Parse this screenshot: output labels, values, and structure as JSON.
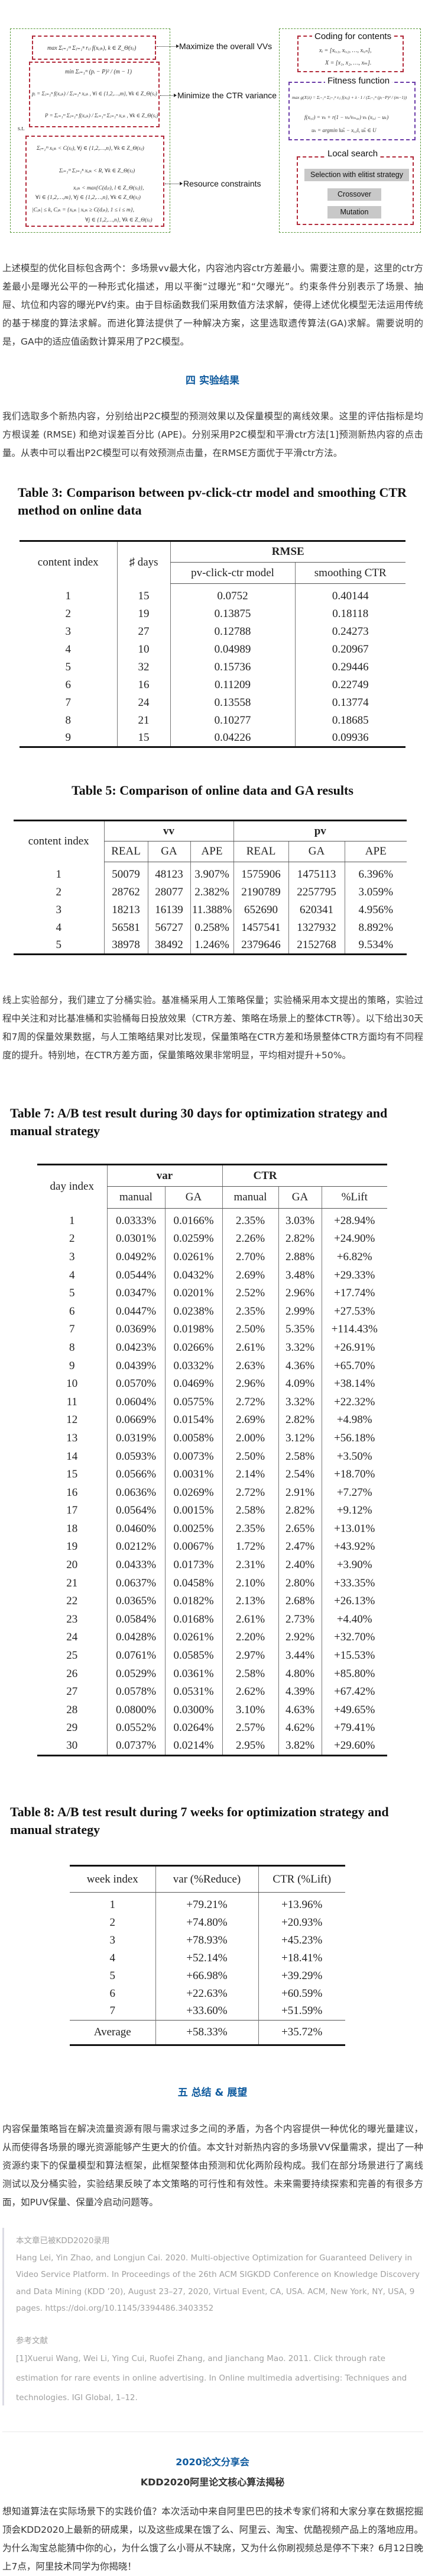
{
  "diagram": {
    "left_formulas": {
      "max_vv": "max Σᵢ₌₁ᵐ Σⱼ₌₁ⁿ rᵢⱼ f(xᵢⱼₖ), k ∈ Z_Θ(sⱼ)",
      "min_var": "min Σᵢ₌₁ᵐ (pᵢ − P)² / (m − 1)",
      "p_i": "pᵢ = Σⱼ₌₁ⁿ f(xᵢⱼₖ) / Σⱼ₌₁ⁿ xᵢⱼₖ , ∀i ∈ {1,2,…,m}, ∀k ∈ Z_Θ(sⱼ)",
      "P": "P = Σᵢ₌₁ᵐ Σⱼ₌₁ⁿ f(xᵢⱼₖ) / Σᵢ₌₁ᵐ Σⱼ₌₁ⁿ xᵢⱼₖ , ∀k ∈ Z_Θ(sⱼ)",
      "st": "s.t.",
      "c1": "Σᵢ₌₁ᵐ xᵢⱼₖ < C(sⱼ), ∀j ∈ {1,2,…,n}, ∀k ∈ Z_Θ(sⱼ)",
      "c2": "Σᵢ₌₁ᵐ Σⱼ₌₁ⁿ xᵢⱼₖ < R, ∀k ∈ Z_Θ(sⱼ)",
      "c3a": "xᵢⱼₖ < max{C(dⱼₗ), l ∈ Z_Θ(sⱼ)},",
      "c3b": "∀i ∈ {1,2,…,m}, ∀j ∈ {1,2,…,n}, ∀k ∈ Z_Θ(sⱼ)",
      "c4a": "|Cⱼₖ| ≤ k, Cⱼₖ = {xᵢⱼₖ | xᵢⱼₖ ≥ C(dⱼₖ), 1 ≤ i ≤ m},",
      "c4b": "∀j ∈ {1,2,…,n}, ∀k ∈ Z_Θ(sⱼ)"
    },
    "objectives": [
      "Maximize the overall VVs",
      "Minimize the CTR variance",
      "Resource constraints"
    ],
    "right": {
      "coding_title": "Coding for contents",
      "coding_f1": "xᵢ = [xᵢ,₁, xᵢ,₂, …, xᵢ,ₙ],",
      "coding_f2": "X = [x₁, x₂, …, xₘ].",
      "fitness_title": "Fitness function",
      "fitness_f1": "max g(X|λ) = Σᵢ₌₁ᵐ Σⱼ₌₁ⁿ rᵢⱼ f(xᵢⱼ) + λ · 1 / (Σᵢ₌₁ᵐ (pᵢ−P)² / (m−1))",
      "fitness_f2": "f(xᵢ,ⱼ) = vₖ + r(1 − vₖ/vₘₐₓ) vₖ (xᵢ,ⱼ − uₖ)",
      "fitness_f3": "uₖ = argmin ‖uₖ̃ − xᵢ,ⱼ‖, uₖ̃ ∈ U",
      "local_title": "Local search",
      "buttons": [
        "Selection with elitist strategy",
        "Crossover",
        "Mutation"
      ]
    },
    "colors": {
      "outer": "#5a9a3a",
      "objective": "#b22a3a",
      "fitness": "#6a3aa8",
      "button": "#c8c8c8"
    }
  },
  "para1": "上述模型的优化目标包含两个：多场景vv最大化，内容池内容ctr方差最小。需要注意的是，这里的ctr方差最小是曝光公平的一种形式化描述，用以平衡“过曝光”和“欠曝光”。约束条件分别表示了场景、抽屉、坑位和内容的曝光PV约束。由于目标函数我们采用数值方法求解，使得上述优化模型无法运用传统的基于梯度的算法求解。而进化算法提供了一种解决方案，这里选取遗传算法(GA)求解。需要说明的是，GA中的适应值函数计算采用了P2C模型。",
  "section4": "四  实验结果",
  "para2": "我们选取多个新热内容，分别给出P2C模型的预测效果以及保量模型的离线效果。这里的评估指标是均方根误差 (RMSE) 和绝对误差百分比 (APE)。分别采用P2C模型和平滑ctr方法[1]预测新热内容的点击量。从表中可以看出P2C模型可以有效预测点击量，在RMSE方面优于平滑ctr方法。",
  "table3": {
    "title": "Table 3: Comparison between pv-click-ctr model and smoothing CTR method on online data",
    "headers": {
      "c1": "content index",
      "c2": "♯ days",
      "group": "RMSE",
      "c3": "pv-click-ctr model",
      "c4": "smoothing CTR"
    },
    "rows": [
      [
        "1",
        "15",
        "0.0752",
        "0.40144"
      ],
      [
        "2",
        "19",
        "0.13875",
        "0.18118"
      ],
      [
        "3",
        "27",
        "0.12788",
        "0.24273"
      ],
      [
        "4",
        "10",
        "0.04989",
        "0.20967"
      ],
      [
        "5",
        "32",
        "0.15736",
        "0.29446"
      ],
      [
        "6",
        "16",
        "0.11209",
        "0.22749"
      ],
      [
        "7",
        "24",
        "0.13558",
        "0.13774"
      ],
      [
        "8",
        "21",
        "0.10277",
        "0.18685"
      ],
      [
        "9",
        "15",
        "0.04226",
        "0.09936"
      ]
    ]
  },
  "table5": {
    "title": "Table 5: Comparison of online data and GA results",
    "headers": {
      "c1": "content index",
      "g1": "vv",
      "g2": "pv",
      "sub": [
        "REAL",
        "GA",
        "APE",
        "REAL",
        "GA",
        "APE"
      ]
    },
    "rows": [
      [
        "1",
        "50079",
        "48123",
        "3.907%",
        "1575906",
        "1475113",
        "6.396%"
      ],
      [
        "2",
        "28762",
        "28077",
        "2.382%",
        "2190789",
        "2257795",
        "3.059%"
      ],
      [
        "3",
        "18213",
        "16139",
        "11.388%",
        "652690",
        "620341",
        "4.956%"
      ],
      [
        "4",
        "56581",
        "56727",
        "0.258%",
        "1457541",
        "1327932",
        "8.892%"
      ],
      [
        "5",
        "38978",
        "38492",
        "1.246%",
        "2379646",
        "2152768",
        "9.534%"
      ]
    ]
  },
  "para3": "线上实验部分，我们建立了分桶实验。基准桶采用人工策略保量；实验桶采用本文提出的策略，实验过程中关注和对比基准桶和实验桶每日投放效果（CTR方差、策略在场景上的整体CTR等）。以下给出30天和7周的保量效果数据，与人工策略结果对比发现，保量策略在CTR方差和场景整体CTR方面均有不同程度的提升。特别地，在CTR方差方面，保量策略效果非常明显，平均相对提升+50%。",
  "table7": {
    "title": "Table 7: A/B test result during 30 days for optimization strategy and manual strategy",
    "headers": {
      "c1": "day index",
      "g1": "var",
      "g2": "CTR",
      "sub": [
        "manual",
        "GA",
        "manual",
        "GA",
        "%Lift"
      ]
    },
    "rows": [
      [
        "1",
        "0.0333%",
        "0.0166%",
        "2.35%",
        "3.03%",
        "+28.94%"
      ],
      [
        "2",
        "0.0301%",
        "0.0259%",
        "2.26%",
        "2.82%",
        "+24.90%"
      ],
      [
        "3",
        "0.0492%",
        "0.0261%",
        "2.70%",
        "2.88%",
        "+6.82%"
      ],
      [
        "4",
        "0.0544%",
        "0.0432%",
        "2.69%",
        "3.48%",
        "+29.33%"
      ],
      [
        "5",
        "0.0347%",
        "0.0201%",
        "2.52%",
        "2.96%",
        "+17.74%"
      ],
      [
        "6",
        "0.0447%",
        "0.0238%",
        "2.35%",
        "2.99%",
        "+27.53%"
      ],
      [
        "7",
        "0.0369%",
        "0.0198%",
        "2.50%",
        "5.35%",
        "+114.43%"
      ],
      [
        "8",
        "0.0423%",
        "0.0266%",
        "2.61%",
        "3.32%",
        "+26.91%"
      ],
      [
        "9",
        "0.0439%",
        "0.0332%",
        "2.63%",
        "4.36%",
        "+65.70%"
      ],
      [
        "10",
        "0.0570%",
        "0.0469%",
        "2.96%",
        "4.09%",
        "+38.14%"
      ],
      [
        "11",
        "0.0604%",
        "0.0575%",
        "2.72%",
        "3.32%",
        "+22.32%"
      ],
      [
        "12",
        "0.0669%",
        "0.0154%",
        "2.69%",
        "2.82%",
        "+4.98%"
      ],
      [
        "13",
        "0.0319%",
        "0.0058%",
        "2.00%",
        "3.12%",
        "+56.18%"
      ],
      [
        "14",
        "0.0593%",
        "0.0073%",
        "2.50%",
        "2.58%",
        "+3.50%"
      ],
      [
        "15",
        "0.0566%",
        "0.0031%",
        "2.14%",
        "2.54%",
        "+18.70%"
      ],
      [
        "16",
        "0.0636%",
        "0.0269%",
        "2.72%",
        "2.91%",
        "+7.27%"
      ],
      [
        "17",
        "0.0564%",
        "0.0015%",
        "2.58%",
        "2.82%",
        "+9.12%"
      ],
      [
        "18",
        "0.0460%",
        "0.0025%",
        "2.35%",
        "2.65%",
        "+13.01%"
      ],
      [
        "19",
        "0.0212%",
        "0.0067%",
        "1.72%",
        "2.47%",
        "+43.92%"
      ],
      [
        "20",
        "0.0433%",
        "0.0173%",
        "2.31%",
        "2.40%",
        "+3.90%"
      ],
      [
        "21",
        "0.0637%",
        "0.0458%",
        "2.10%",
        "2.80%",
        "+33.35%"
      ],
      [
        "22",
        "0.0365%",
        "0.0182%",
        "2.13%",
        "2.68%",
        "+26.13%"
      ],
      [
        "23",
        "0.0584%",
        "0.0168%",
        "2.61%",
        "2.73%",
        "+4.40%"
      ],
      [
        "24",
        "0.0428%",
        "0.0261%",
        "2.20%",
        "2.92%",
        "+32.70%"
      ],
      [
        "25",
        "0.0761%",
        "0.0585%",
        "2.97%",
        "3.44%",
        "+15.53%"
      ],
      [
        "26",
        "0.0529%",
        "0.0361%",
        "2.58%",
        "4.80%",
        "+85.80%"
      ],
      [
        "27",
        "0.0578%",
        "0.0531%",
        "2.62%",
        "4.39%",
        "+67.42%"
      ],
      [
        "28",
        "0.0800%",
        "0.0300%",
        "3.10%",
        "4.63%",
        "+49.65%"
      ],
      [
        "29",
        "0.0552%",
        "0.0264%",
        "2.57%",
        "4.62%",
        "+79.41%"
      ],
      [
        "30",
        "0.0737%",
        "0.0214%",
        "2.95%",
        "3.82%",
        "+29.60%"
      ]
    ]
  },
  "table8": {
    "title": "Table 8: A/B test result during 7 weeks for optimization strategy and manual strategy",
    "headers": [
      "week index",
      "var (%Reduce)",
      "CTR (%Lift)"
    ],
    "rows": [
      [
        "1",
        "+79.21%",
        "+13.96%"
      ],
      [
        "2",
        "+74.80%",
        "+20.93%"
      ],
      [
        "3",
        "+78.93%",
        "+45.23%"
      ],
      [
        "4",
        "+52.14%",
        "+18.41%"
      ],
      [
        "5",
        "+66.98%",
        "+39.29%"
      ],
      [
        "6",
        "+22.63%",
        "+60.59%"
      ],
      [
        "7",
        "+33.60%",
        "+51.59%"
      ]
    ],
    "average": [
      "Average",
      "+58.33%",
      "+35.72%"
    ]
  },
  "section5": "五  总结 & 展望",
  "para4": "内容保量策略旨在解决流量资源有限与需求过多之间的矛盾，为各个内容提供一种优化的曝光量建议，从而使得各场景的曝光资源能够产生更大的价值。本文针对新热内容的多场景VV保量需求，提出了一种资源约束下的保量模型和算法框架，此框架整体由预测和优化两阶段构成。我们在部分场景进行了离线测试以及分桶实验，实验结果反映了本文策略的可行性和有效性。未来需要持续探索和完善的有很多方面，如PUV保量、保量冷启动问题等。",
  "quote": {
    "accepted": "本文章已被KDD2020录用",
    "citation": "Hang Lei, Yin Zhao, and Longjun Cai. 2020. Multi-objective Optimization for Guaranteed Delivery in Video Service Platform. In Proceedings of the 26th ACM SIGKDD Conference on Knowledge Discovery and Data Mining (KDD ’20), August 23–27, 2020, Virtual Event, CA, USA. ACM, New York, NY, USA, 9 pages. https://doi.org/10.1145/3394486.3403352",
    "ref_title": "参考文献",
    "ref1": "[1]Xuerui Wang, Wei Li, Ying Cui, Ruofei Zhang, and Jianchang Mao. 2011. Click through rate estimation for rare events in online advertising. In Online multimedia advertising: Techniques and technologies. IGI Global, 1–12."
  },
  "footer": {
    "event_title": "2020论文分享会",
    "event_subtitle": "KDD2020阿里论文核心算法揭秘",
    "event_text": "想知道算法在实际场景下的实践价值？本次活动中来自阿里巴巴的技术专家们将和大家分享在数据挖掘顶会KDD2020上最新的研成果，以及这些成果在饿了么、阿里云、淘宝、优酷视频产品上的落地应用。为什么淘宝总能猜中你的心，为什么饿了么小哥从不缺席，又为什么你刷视频总是停不下来？6月12日晚上7点，阿里技术同学为你揭晓！"
  },
  "colors": {
    "heading": "#0e5a9e",
    "quote_text": "#a0a0a0"
  }
}
